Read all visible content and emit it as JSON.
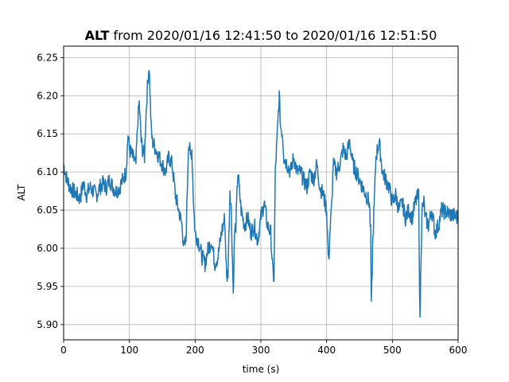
{
  "chart_data": {
    "type": "line",
    "title_bold": "ALT",
    "title_rest": " from 2020/01/16 12:41:50 to 2020/01/16 12:51:50",
    "xlabel": "time (s)",
    "ylabel": "ALT",
    "xlim": [
      0,
      600
    ],
    "ylim": [
      5.88,
      6.265
    ],
    "xticks": [
      "0",
      "100",
      "200",
      "300",
      "400",
      "500",
      "600"
    ],
    "yticks": [
      "5.90",
      "5.95",
      "6.00",
      "6.05",
      "6.10",
      "6.15",
      "6.20",
      "6.25"
    ],
    "grid": true,
    "line_color": "#1f77b4",
    "series": [
      {
        "x": [
          0,
          5,
          10,
          15,
          20,
          25,
          30,
          35,
          40,
          45,
          50,
          55,
          60,
          65,
          70,
          75,
          80,
          85,
          90,
          95,
          98,
          100,
          105,
          110,
          113,
          115,
          118,
          120,
          123,
          125,
          128,
          130,
          133,
          135,
          140,
          145,
          150,
          155,
          160,
          165,
          170,
          175,
          180,
          183,
          186,
          190,
          193,
          195,
          198,
          200,
          205,
          210,
          215,
          220,
          225,
          230,
          235,
          240,
          245,
          248,
          250,
          253,
          255,
          258,
          260,
          262,
          265,
          270,
          275,
          280,
          285,
          290,
          295,
          300,
          305,
          310,
          315,
          318,
          320,
          322,
          325,
          328,
          330,
          333,
          335,
          340,
          345,
          350,
          355,
          360,
          365,
          370,
          375,
          380,
          385,
          390,
          395,
          400,
          403,
          405,
          408,
          410,
          415,
          420,
          425,
          430,
          435,
          440,
          445,
          450,
          455,
          460,
          465,
          467,
          468,
          470,
          473,
          475,
          480,
          485,
          490,
          495,
          500,
          505,
          510,
          515,
          520,
          525,
          530,
          535,
          540,
          542,
          543,
          545,
          548,
          550,
          555,
          560,
          565,
          570,
          575,
          600
        ],
        "y": [
          6.11,
          6.09,
          6.08,
          6.075,
          6.07,
          6.065,
          6.085,
          6.07,
          6.08,
          6.075,
          6.07,
          6.08,
          6.085,
          6.08,
          6.09,
          6.08,
          6.075,
          6.08,
          6.09,
          6.1,
          6.15,
          6.13,
          6.12,
          6.11,
          6.17,
          6.19,
          6.14,
          6.13,
          6.12,
          6.17,
          6.22,
          6.24,
          6.16,
          6.14,
          6.13,
          6.12,
          6.11,
          6.1,
          6.12,
          6.11,
          6.07,
          6.05,
          6.03,
          6.0,
          6.01,
          6.14,
          6.12,
          6.13,
          6.05,
          6.02,
          6.01,
          5.99,
          5.98,
          6.0,
          6.01,
          5.98,
          5.99,
          6.02,
          6.04,
          5.96,
          5.97,
          6.08,
          6.05,
          5.94,
          6.02,
          6.03,
          6.1,
          6.05,
          6.03,
          6.04,
          6.02,
          6.03,
          6.01,
          6.04,
          6.06,
          6.03,
          6.02,
          5.97,
          5.96,
          6.1,
          6.15,
          6.2,
          6.16,
          6.15,
          6.12,
          6.11,
          6.1,
          6.12,
          6.1,
          6.1,
          6.09,
          6.08,
          6.1,
          6.09,
          6.11,
          6.08,
          6.07,
          6.05,
          5.98,
          6.02,
          6.06,
          6.11,
          6.1,
          6.11,
          6.13,
          6.12,
          6.14,
          6.11,
          6.1,
          6.09,
          6.08,
          6.07,
          6.06,
          6.02,
          5.92,
          6.0,
          6.07,
          6.12,
          6.14,
          6.1,
          6.09,
          6.08,
          6.06,
          6.07,
          6.05,
          6.06,
          6.04,
          6.05,
          6.04,
          6.06,
          6.07,
          5.9,
          5.96,
          6.05,
          6.06,
          6.04,
          6.03,
          6.05,
          6.02,
          6.03,
          6.05,
          6.04
        ]
      }
    ]
  }
}
